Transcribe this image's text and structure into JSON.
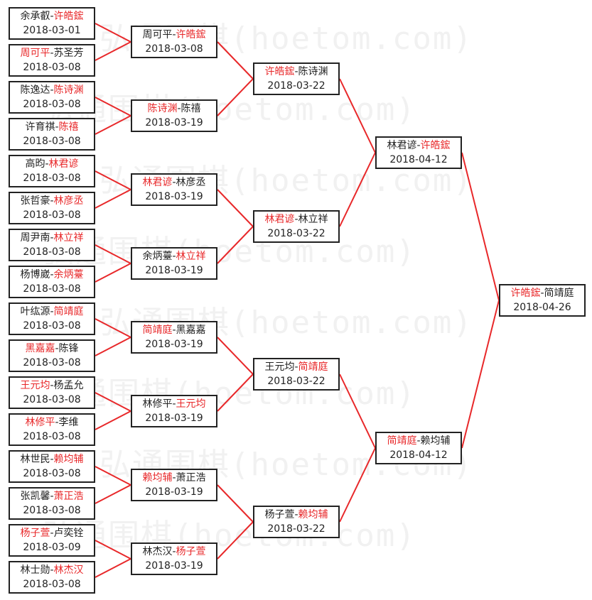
{
  "watermark": "弘通围棋(hoetom.com)",
  "colors": {
    "winner": "#e8282a",
    "line": "#e8282a",
    "border": "#222222"
  },
  "rounds": [
    [
      {
        "p1": "余承叡",
        "p2": "许皓鋐",
        "winner": 2,
        "date": "2018-03-01"
      },
      {
        "p1": "周可平",
        "p2": "苏圣芳",
        "winner": 1,
        "date": "2018-03-08"
      },
      {
        "p1": "陈逸达",
        "p2": "陈诗渊",
        "winner": 2,
        "date": "2018-03-08"
      },
      {
        "p1": "许育祺",
        "p2": "陈禧",
        "winner": 2,
        "date": "2018-03-08"
      },
      {
        "p1": "高昀",
        "p2": "林君谚",
        "winner": 2,
        "date": "2018-03-08"
      },
      {
        "p1": "张哲豪",
        "p2": "林彦丞",
        "winner": 2,
        "date": "2018-03-08"
      },
      {
        "p1": "周尹南",
        "p2": "林立祥",
        "winner": 2,
        "date": "2018-03-08"
      },
      {
        "p1": "杨博崴",
        "p2": "余炳薹",
        "winner": 2,
        "date": "2018-03-08"
      },
      {
        "p1": "叶纮源",
        "p2": "简靖庭",
        "winner": 2,
        "date": "2018-03-08"
      },
      {
        "p1": "黑嘉嘉",
        "p2": "陈锋",
        "winner": 1,
        "date": "2018-03-08"
      },
      {
        "p1": "王元均",
        "p2": "杨孟允",
        "winner": 1,
        "date": "2018-03-08"
      },
      {
        "p1": "林修平",
        "p2": "李维",
        "winner": 1,
        "date": "2018-03-08"
      },
      {
        "p1": "林世民",
        "p2": "赖均辅",
        "winner": 2,
        "date": "2018-03-08"
      },
      {
        "p1": "张凯馨",
        "p2": "萧正浩",
        "winner": 2,
        "date": "2018-03-08"
      },
      {
        "p1": "杨子萱",
        "p2": "卢奕铨",
        "winner": 1,
        "date": "2018-03-09"
      },
      {
        "p1": "林士勋",
        "p2": "林杰汉",
        "winner": 2,
        "date": "2018-03-08"
      }
    ],
    [
      {
        "p1": "周可平",
        "p2": "许皓鋐",
        "winner": 2,
        "date": "2018-03-08"
      },
      {
        "p1": "陈诗渊",
        "p2": "陈禧",
        "winner": 1,
        "date": "2018-03-19"
      },
      {
        "p1": "林君谚",
        "p2": "林彦丞",
        "winner": 1,
        "date": "2018-03-19"
      },
      {
        "p1": "余炳薹",
        "p2": "林立祥",
        "winner": 2,
        "date": "2018-03-19"
      },
      {
        "p1": "简靖庭",
        "p2": "黑嘉嘉",
        "winner": 1,
        "date": "2018-03-19"
      },
      {
        "p1": "林修平",
        "p2": "王元均",
        "winner": 2,
        "date": "2018-03-19"
      },
      {
        "p1": "赖均辅",
        "p2": "萧正浩",
        "winner": 1,
        "date": "2018-03-19"
      },
      {
        "p1": "林杰汉",
        "p2": "杨子萱",
        "winner": 2,
        "date": "2018-03-19"
      }
    ],
    [
      {
        "p1": "许皓鋐",
        "p2": "陈诗渊",
        "winner": 1,
        "date": "2018-03-22"
      },
      {
        "p1": "林君谚",
        "p2": "林立祥",
        "winner": 1,
        "date": "2018-03-22"
      },
      {
        "p1": "王元均",
        "p2": "简靖庭",
        "winner": 2,
        "date": "2018-03-22"
      },
      {
        "p1": "杨子萱",
        "p2": "赖均辅",
        "winner": 2,
        "date": "2018-03-22"
      }
    ],
    [
      {
        "p1": "林君谚",
        "p2": "许皓鋐",
        "winner": 2,
        "date": "2018-04-12"
      },
      {
        "p1": "简靖庭",
        "p2": "赖均辅",
        "winner": 1,
        "date": "2018-04-12"
      }
    ],
    [
      {
        "p1": "许皓鋐",
        "p2": "简靖庭",
        "winner": 1,
        "date": "2018-04-26"
      }
    ]
  ]
}
